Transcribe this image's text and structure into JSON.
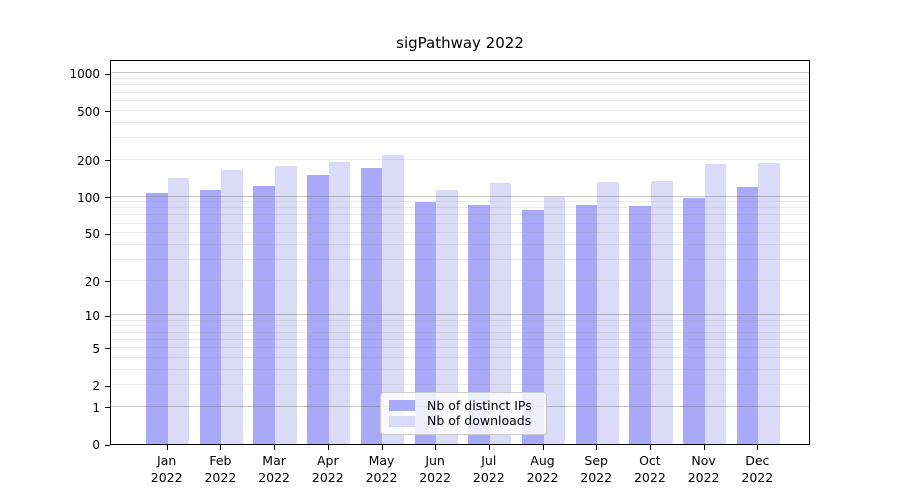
{
  "title": "sigPathway 2022",
  "chart_data": {
    "type": "bar",
    "title": "sigPathway 2022",
    "scale": "log1p",
    "grid": true,
    "legend_position": "bottom-center",
    "year": "2022",
    "months": [
      "Jan",
      "Feb",
      "Mar",
      "Apr",
      "May",
      "Jun",
      "Jul",
      "Aug",
      "Sep",
      "Oct",
      "Nov",
      "Dec"
    ],
    "categories": [
      "Jan 2022",
      "Feb 2022",
      "Mar 2022",
      "Apr 2022",
      "May 2022",
      "Jun 2022",
      "Jul 2022",
      "Aug 2022",
      "Sep 2022",
      "Oct 2022",
      "Nov 2022",
      "Dec 2022"
    ],
    "series": [
      {
        "name": "Nb of distinct IPs",
        "color": "#a9a9f8",
        "values": [
          107,
          112,
          121,
          150,
          170,
          91,
          86,
          78,
          85,
          84,
          98,
          120
        ]
      },
      {
        "name": "Nb of downloads",
        "color": "#dbdbf8",
        "values": [
          141,
          165,
          176,
          191,
          220,
          113,
          129,
          100,
          132,
          135,
          184,
          187
        ]
      }
    ],
    "y_ticks": [
      0,
      1,
      2,
      5,
      10,
      20,
      50,
      100,
      200,
      500,
      1000
    ],
    "ylim": [
      0,
      1300
    ],
    "xlabel": "",
    "ylabel": ""
  },
  "colors": {
    "background": "#ffffff",
    "axis": "#000000",
    "major_grid": "#bcbcbc",
    "minor_grid": "#e6e6e6",
    "legend_border": "#cccccc"
  }
}
